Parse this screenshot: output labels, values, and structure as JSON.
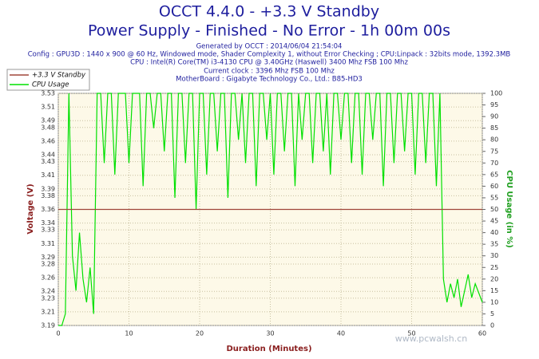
{
  "chart_data": {
    "type": "line",
    "title": "OCCT 4.4.0 - +3.3 V Standby",
    "subtitle": "Power Supply - Finished - No Error - 1h 00m 00s",
    "info": [
      "Generated by OCCT : 2014/06/04 21:54:04",
      "Config : GPU3D : 1440 x 900 @ 60 Hz, Windowed mode, Shader Complexity 1, without Error Checking ; CPU:Linpack : 32bits mode, 1392.3MB",
      "CPU : Intel(R) Core(TM) i3-4130 CPU @ 3.40GHz (Haswell) 3400 Mhz FSB 100 Mhz",
      "Current clock : 3396 Mhz FSB 100 Mhz",
      "MotherBoard : Gigabyte Technology Co., Ltd.: B85-HD3"
    ],
    "watermark": "www.pcwalsh.cn",
    "xlabel": "Duration (Minutes)",
    "ylabel": "Voltage (V)",
    "y2label": "CPU Usage (in %)",
    "xlim": [
      0,
      60
    ],
    "xticks": [
      0,
      10,
      20,
      30,
      40,
      50,
      60
    ],
    "ylim": [
      3.19,
      3.53
    ],
    "yticks": [
      3.19,
      3.21,
      3.23,
      3.24,
      3.26,
      3.28,
      3.29,
      3.31,
      3.33,
      3.34,
      3.36,
      3.38,
      3.39,
      3.41,
      3.43,
      3.44,
      3.46,
      3.48,
      3.49,
      3.51,
      3.53
    ],
    "y2lim": [
      0,
      100
    ],
    "y2ticks": [
      0,
      5,
      10,
      15,
      20,
      25,
      30,
      35,
      40,
      45,
      50,
      55,
      60,
      65,
      70,
      75,
      80,
      85,
      90,
      95,
      100
    ],
    "grid": true,
    "legend": "upper left",
    "x": [
      0,
      0.5,
      1,
      1.5,
      2,
      2.5,
      3,
      3.5,
      4,
      4.5,
      5,
      5.5,
      6,
      6.5,
      7,
      7.5,
      8,
      8.5,
      9,
      9.5,
      10,
      10.5,
      11,
      11.5,
      12,
      12.5,
      13,
      13.5,
      14,
      14.5,
      15,
      15.5,
      16,
      16.5,
      17,
      17.5,
      18,
      18.5,
      19,
      19.5,
      20,
      20.5,
      21,
      21.5,
      22,
      22.5,
      23,
      23.5,
      24,
      24.5,
      25,
      25.5,
      26,
      26.5,
      27,
      27.5,
      28,
      28.5,
      29,
      29.5,
      30,
      30.5,
      31,
      31.5,
      32,
      32.5,
      33,
      33.5,
      34,
      34.5,
      35,
      35.5,
      36,
      36.5,
      37,
      37.5,
      38,
      38.5,
      39,
      39.5,
      40,
      40.5,
      41,
      41.5,
      42,
      42.5,
      43,
      43.5,
      44,
      44.5,
      45,
      45.5,
      46,
      46.5,
      47,
      47.5,
      48,
      48.5,
      49,
      49.5,
      50,
      50.5,
      51,
      51.5,
      52,
      52.5,
      53,
      53.5,
      54,
      54.5,
      55,
      55.5,
      56,
      56.5,
      57,
      57.5,
      58,
      58.5,
      59,
      59.5,
      60
    ],
    "series": [
      {
        "name": "+3.3 V Standby",
        "color": "#a0463a",
        "values": [
          3.36,
          3.36,
          3.36,
          3.36,
          3.36,
          3.36,
          3.36,
          3.36,
          3.36,
          3.36,
          3.36,
          3.36,
          3.36,
          3.36,
          3.36,
          3.36,
          3.36,
          3.36,
          3.36,
          3.36,
          3.36,
          3.36,
          3.36,
          3.36,
          3.36,
          3.36,
          3.36,
          3.36,
          3.36,
          3.36,
          3.36,
          3.36,
          3.36,
          3.36,
          3.36,
          3.36,
          3.36,
          3.36,
          3.36,
          3.36,
          3.36,
          3.36,
          3.36,
          3.36,
          3.36,
          3.36,
          3.36,
          3.36,
          3.36,
          3.36,
          3.36,
          3.36,
          3.36,
          3.36,
          3.36,
          3.36,
          3.36,
          3.36,
          3.36,
          3.36,
          3.36,
          3.36,
          3.36,
          3.36,
          3.36,
          3.36,
          3.36,
          3.36,
          3.36,
          3.36,
          3.36,
          3.36,
          3.36,
          3.36,
          3.36,
          3.36,
          3.36,
          3.36,
          3.36,
          3.36,
          3.36,
          3.36,
          3.36,
          3.36,
          3.36,
          3.36,
          3.36,
          3.36,
          3.36,
          3.36,
          3.36,
          3.36,
          3.36,
          3.36,
          3.36,
          3.36,
          3.36,
          3.36,
          3.36,
          3.36,
          3.36,
          3.36,
          3.36,
          3.36,
          3.36,
          3.36,
          3.36,
          3.36,
          3.36,
          3.36,
          3.36,
          3.36,
          3.36,
          3.36,
          3.36,
          3.36,
          3.36,
          3.36,
          3.36,
          3.36,
          3.36
        ]
      },
      {
        "name": "CPU Usage",
        "color": "#00e000",
        "axis": "y2",
        "values": [
          0,
          0,
          5,
          100,
          30,
          15,
          40,
          20,
          10,
          25,
          5,
          100,
          100,
          70,
          100,
          100,
          65,
          100,
          100,
          100,
          70,
          100,
          100,
          100,
          60,
          100,
          100,
          85,
          100,
          100,
          75,
          100,
          100,
          55,
          100,
          100,
          70,
          100,
          100,
          50,
          100,
          100,
          65,
          100,
          100,
          75,
          100,
          100,
          55,
          100,
          100,
          80,
          100,
          70,
          100,
          100,
          60,
          100,
          100,
          80,
          100,
          65,
          100,
          100,
          75,
          100,
          100,
          60,
          100,
          80,
          100,
          100,
          70,
          100,
          100,
          75,
          100,
          65,
          100,
          100,
          80,
          100,
          100,
          70,
          100,
          100,
          65,
          100,
          100,
          80,
          100,
          100,
          60,
          100,
          100,
          70,
          100,
          100,
          75,
          100,
          100,
          65,
          100,
          100,
          70,
          100,
          100,
          60,
          100,
          20,
          10,
          18,
          12,
          20,
          8,
          15,
          22,
          12,
          18,
          14,
          10
        ]
      }
    ]
  }
}
